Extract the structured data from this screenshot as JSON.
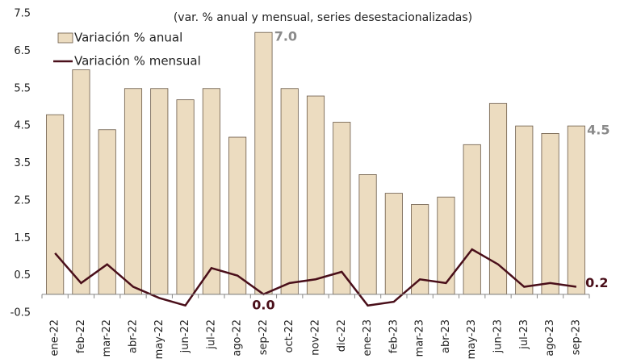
{
  "chart_data": {
    "type": "bar_line",
    "subtitle": "(var. % anual y mensual, series desestacionalizadas)",
    "categories": [
      "ene-22",
      "feb-22",
      "mar-22",
      "abr-22",
      "may-22",
      "jun-22",
      "jul-22",
      "ago-22",
      "sep-22",
      "oct-22",
      "nov-22",
      "dic-22",
      "ene-23",
      "feb-23",
      "mar-23",
      "abr-23",
      "may-23",
      "jun-23",
      "jul-23",
      "ago-23",
      "sep-23"
    ],
    "series": [
      {
        "name": "Variación % anual",
        "type": "bar",
        "color": "#ecdcc0",
        "values": [
          4.8,
          6.0,
          4.4,
          5.5,
          5.5,
          5.2,
          5.5,
          4.2,
          7.0,
          5.5,
          5.3,
          4.6,
          3.2,
          2.7,
          2.4,
          2.6,
          4.0,
          5.1,
          4.5,
          4.3,
          4.5
        ],
        "value_labels": [
          null,
          null,
          null,
          null,
          null,
          null,
          null,
          null,
          "7.0",
          null,
          null,
          null,
          null,
          null,
          null,
          null,
          null,
          null,
          null,
          null,
          "4.5"
        ]
      },
      {
        "name": "Variación % mensual",
        "type": "line",
        "color": "#4a0f1a",
        "values": [
          1.1,
          0.3,
          0.8,
          0.2,
          -0.1,
          -0.3,
          0.7,
          0.5,
          0.0,
          0.3,
          0.4,
          0.6,
          -0.3,
          -0.2,
          0.4,
          0.3,
          1.2,
          0.8,
          0.2,
          0.3,
          0.2
        ],
        "value_labels": [
          null,
          null,
          null,
          null,
          null,
          null,
          null,
          null,
          "0.0",
          null,
          null,
          null,
          null,
          null,
          null,
          null,
          null,
          null,
          null,
          null,
          "0.2"
        ]
      }
    ],
    "ylim": [
      -0.5,
      7.5
    ],
    "yticks": [
      -0.5,
      0.5,
      1.5,
      2.5,
      3.5,
      4.5,
      5.5,
      6.5,
      7.5
    ],
    "legend": "upper left",
    "grid": false
  }
}
